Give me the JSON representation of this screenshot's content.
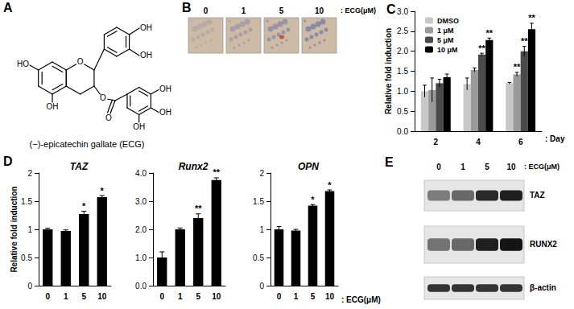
{
  "chart_data": [
    {
      "type": "bar",
      "annotations": [
        "C"
      ],
      "ylabel": "Relative fold induction",
      "xlabel": ": Day",
      "categories": [
        "2",
        "4",
        "6"
      ],
      "ylim": [
        0,
        3
      ],
      "yticks": [
        {
          "value": 0,
          "label": "0.0"
        },
        {
          "value": 0.5,
          "label": "0.5"
        },
        {
          "value": 1,
          "label": "1.0"
        },
        {
          "value": 1.5,
          "label": "1.5"
        },
        {
          "value": 2,
          "label": "2.0"
        },
        {
          "value": 2.5,
          "label": "2.5"
        },
        {
          "value": 3,
          "label": "3.0"
        }
      ],
      "grid": false,
      "legend": "top-left",
      "series": [
        {
          "name": "DMSO",
          "color": "#c8c8c8",
          "values": [
            1.0,
            1.18,
            1.2
          ],
          "errors": [
            0.15,
            0.15,
            0.02
          ],
          "significance": [
            null,
            null,
            null
          ]
        },
        {
          "name": "1 μM",
          "color": "#9a9a9a",
          "values": [
            1.03,
            1.53,
            1.42
          ],
          "errors": [
            0.3,
            0.05,
            0.05
          ],
          "significance": [
            null,
            null,
            "**"
          ]
        },
        {
          "name": "5 μM",
          "color": "#4a4a4a",
          "values": [
            1.2,
            1.92,
            2.0
          ],
          "errors": [
            0.1,
            0.03,
            0.12
          ],
          "significance": [
            null,
            "**",
            "**"
          ]
        },
        {
          "name": "10 μM",
          "color": "#000000",
          "values": [
            1.35,
            2.28,
            2.55
          ],
          "errors": [
            0.08,
            0.05,
            0.15
          ],
          "significance": [
            null,
            "**",
            "**"
          ]
        }
      ]
    },
    {
      "type": "bar",
      "title": "TAZ",
      "annotations": [
        "D"
      ],
      "ylabel": "Relative fold induction",
      "categories": [
        "0",
        "1",
        "5",
        "10"
      ],
      "ylim": [
        0,
        2
      ],
      "yticks": [
        0,
        0.5,
        1,
        1.5,
        2
      ],
      "grid": false,
      "color": "#000000",
      "values": [
        1.0,
        0.97,
        1.27,
        1.57
      ],
      "errors": [
        0.02,
        0.02,
        0.05,
        0.03
      ],
      "significance": [
        null,
        null,
        "*",
        "*"
      ]
    },
    {
      "type": "bar",
      "title": "Runx2",
      "categories": [
        "0",
        "1",
        "5",
        "10"
      ],
      "ylim": [
        0,
        4
      ],
      "yticks": [
        {
          "value": 0,
          "label": "0.0"
        },
        {
          "value": 1,
          "label": "1.0"
        },
        {
          "value": 2,
          "label": "2.0"
        },
        {
          "value": 3,
          "label": "3.0"
        },
        {
          "value": 4,
          "label": "4.0"
        }
      ],
      "grid": false,
      "color": "#000000",
      "values": [
        1.0,
        2.0,
        2.4,
        3.75
      ],
      "errors": [
        0.2,
        0.05,
        0.15,
        0.08
      ],
      "significance": [
        null,
        null,
        "**",
        "**"
      ]
    },
    {
      "type": "bar",
      "title": "OPN",
      "xlabel": ": ECG(μM)",
      "categories": [
        "0",
        "1",
        "5",
        "10"
      ],
      "ylim": [
        0,
        2
      ],
      "yticks": [
        0,
        0.5,
        1,
        1.5,
        2
      ],
      "grid": false,
      "color": "#000000",
      "values": [
        1.0,
        0.98,
        1.42,
        1.68
      ],
      "errors": [
        0.05,
        0.02,
        0.02,
        0.02
      ],
      "significance": [
        null,
        null,
        "*",
        "*"
      ]
    }
  ],
  "panel_a": {
    "label": "A",
    "atoms": [
      "HO",
      "OH",
      "O",
      "OH",
      "OH",
      "O",
      "O",
      "OH",
      "OH",
      "OH"
    ],
    "caption": "(−)-epicatechin gallate (ECG)"
  },
  "panel_b": {
    "label": "B",
    "doses": [
      "0",
      "1",
      "5",
      "10"
    ],
    "unit": ": ECG(μM)"
  },
  "panel_e": {
    "label": "E",
    "doses": [
      "0",
      "1",
      "5",
      "10"
    ],
    "unit": ": ECG(μM)",
    "rows": [
      {
        "name": "TAZ",
        "intensities": [
          0.5,
          0.6,
          0.9,
          0.95
        ]
      },
      {
        "name": "RUNX2",
        "intensities": [
          0.55,
          0.6,
          0.95,
          1.0
        ]
      },
      {
        "name": "β-actin",
        "intensities": [
          0.85,
          0.85,
          0.85,
          0.85
        ]
      }
    ]
  }
}
